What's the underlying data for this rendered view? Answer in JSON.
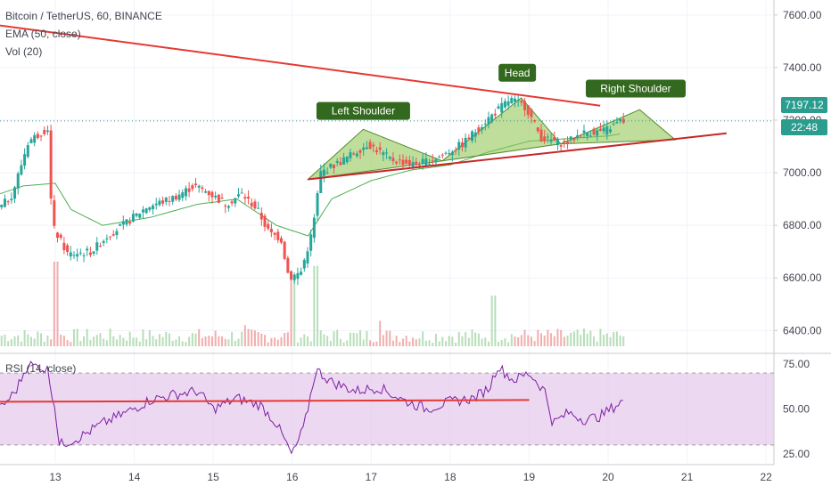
{
  "legend": {
    "symbol": "Bitcoin / TetherUS, 60, BINANCE",
    "ema": "EMA (50, close)",
    "vol": "Vol (20)",
    "rsi": "RSI (14, close)"
  },
  "price_tag": {
    "value": "7197.12",
    "countdown": "22:48",
    "color": "#2a9d8f"
  },
  "annotations": {
    "left_shoulder": "Left Shoulder",
    "head": "Head",
    "right_shoulder": "Right Shoulder"
  },
  "colors": {
    "up": "#26a69a",
    "down": "#ef5350",
    "ema": "#4caf50",
    "trend": "#e53935",
    "pattern_fill": "#8bc34a",
    "label_bg": "#33691e",
    "rsi": "#7b1fa2",
    "rsi_band": "#e1bee7"
  },
  "chart_data": [
    {
      "type": "candlestick",
      "title": "Bitcoin / TetherUS, 60, BINANCE",
      "x_ticks": [
        "13",
        "14",
        "15",
        "16",
        "17",
        "18",
        "19",
        "20",
        "21",
        "22"
      ],
      "y_ticks": [
        "7600.00",
        "7400.00",
        "7200.00",
        "7000.00",
        "6800.00",
        "6600.00",
        "6400.00"
      ],
      "ylim": [
        6330,
        7640
      ],
      "xlim": [
        12.3,
        22.1
      ],
      "last_price": 7197.12,
      "price_anchors": [
        [
          12.3,
          6850
        ],
        [
          12.5,
          6920
        ],
        [
          12.7,
          7120
        ],
        [
          12.95,
          7170
        ],
        [
          13.0,
          6800
        ],
        [
          13.2,
          6690
        ],
        [
          13.5,
          6700
        ],
        [
          13.7,
          6760
        ],
        [
          13.9,
          6800
        ],
        [
          14.2,
          6870
        ],
        [
          14.5,
          6900
        ],
        [
          14.8,
          6950
        ],
        [
          14.95,
          6930
        ],
        [
          15.2,
          6880
        ],
        [
          15.4,
          6920
        ],
        [
          15.6,
          6860
        ],
        [
          15.75,
          6770
        ],
        [
          15.9,
          6750
        ],
        [
          16.0,
          6600
        ],
        [
          16.15,
          6620
        ],
        [
          16.3,
          6780
        ],
        [
          16.4,
          7000
        ],
        [
          16.7,
          7050
        ],
        [
          17.0,
          7110
        ],
        [
          17.3,
          7050
        ],
        [
          17.6,
          7030
        ],
        [
          17.9,
          7060
        ],
        [
          18.2,
          7110
        ],
        [
          18.5,
          7200
        ],
        [
          18.8,
          7280
        ],
        [
          19.0,
          7250
        ],
        [
          19.2,
          7130
        ],
        [
          19.5,
          7110
        ],
        [
          19.7,
          7150
        ],
        [
          20.0,
          7160
        ],
        [
          20.2,
          7197
        ]
      ],
      "ema_anchors": [
        [
          12.3,
          6920
        ],
        [
          12.6,
          6950
        ],
        [
          13.0,
          6960
        ],
        [
          13.2,
          6860
        ],
        [
          13.6,
          6800
        ],
        [
          14.2,
          6830
        ],
        [
          14.8,
          6880
        ],
        [
          15.3,
          6900
        ],
        [
          15.8,
          6800
        ],
        [
          16.2,
          6760
        ],
        [
          16.5,
          6900
        ],
        [
          17.0,
          6970
        ],
        [
          17.5,
          7010
        ],
        [
          18.0,
          7030
        ],
        [
          18.5,
          7080
        ],
        [
          19.0,
          7120
        ],
        [
          19.5,
          7130
        ],
        [
          20.0,
          7140
        ],
        [
          20.2,
          7150
        ]
      ],
      "pattern_triangles": [
        {
          "name": "left_shoulder",
          "points": [
            [
              16.2,
              6975
            ],
            [
              16.9,
              7165
            ],
            [
              17.9,
              7045
            ]
          ]
        },
        {
          "name": "head",
          "points": [
            [
              17.9,
              7045
            ],
            [
              18.9,
              7285
            ],
            [
              19.4,
              7110
            ]
          ]
        },
        {
          "name": "right_shoulder",
          "points": [
            [
              19.4,
              7110
            ],
            [
              20.4,
              7240
            ],
            [
              20.85,
              7125
            ]
          ]
        }
      ],
      "neckline": [
        [
          16.2,
          6975
        ],
        [
          21.5,
          7150
        ]
      ],
      "resistance": [
        [
          12.3,
          7560
        ],
        [
          19.9,
          7255
        ]
      ],
      "volume_spikes": [
        [
          13.0,
          1.0
        ],
        [
          16.0,
          0.85
        ],
        [
          16.3,
          0.95
        ],
        [
          18.55,
          0.6
        ],
        [
          17.1,
          0.3
        ],
        [
          15.4,
          0.25
        ]
      ]
    },
    {
      "type": "line",
      "title": "RSI (14, close)",
      "y_ticks": [
        "75.00",
        "50.00",
        "25.00"
      ],
      "ylim": [
        20,
        80
      ],
      "band": [
        30,
        70
      ],
      "rsi_anchors": [
        [
          12.3,
          50
        ],
        [
          12.5,
          60
        ],
        [
          12.65,
          75
        ],
        [
          12.9,
          72
        ],
        [
          13.0,
          50
        ],
        [
          13.05,
          30
        ],
        [
          13.3,
          34
        ],
        [
          13.6,
          42
        ],
        [
          13.9,
          48
        ],
        [
          14.2,
          55
        ],
        [
          14.5,
          58
        ],
        [
          14.8,
          60
        ],
        [
          15.0,
          50
        ],
        [
          15.3,
          56
        ],
        [
          15.6,
          52
        ],
        [
          15.8,
          42
        ],
        [
          16.0,
          24
        ],
        [
          16.15,
          40
        ],
        [
          16.3,
          72
        ],
        [
          16.5,
          65
        ],
        [
          16.8,
          60
        ],
        [
          17.1,
          62
        ],
        [
          17.4,
          55
        ],
        [
          17.7,
          50
        ],
        [
          18.0,
          54
        ],
        [
          18.3,
          56
        ],
        [
          18.5,
          62
        ],
        [
          18.6,
          74
        ],
        [
          18.8,
          66
        ],
        [
          19.0,
          70
        ],
        [
          19.2,
          60
        ],
        [
          19.3,
          42
        ],
        [
          19.5,
          48
        ],
        [
          19.7,
          44
        ],
        [
          19.9,
          46
        ],
        [
          20.1,
          52
        ],
        [
          20.2,
          55
        ]
      ],
      "trendline": [
        [
          12.3,
          54
        ],
        [
          19.0,
          55
        ]
      ]
    }
  ]
}
